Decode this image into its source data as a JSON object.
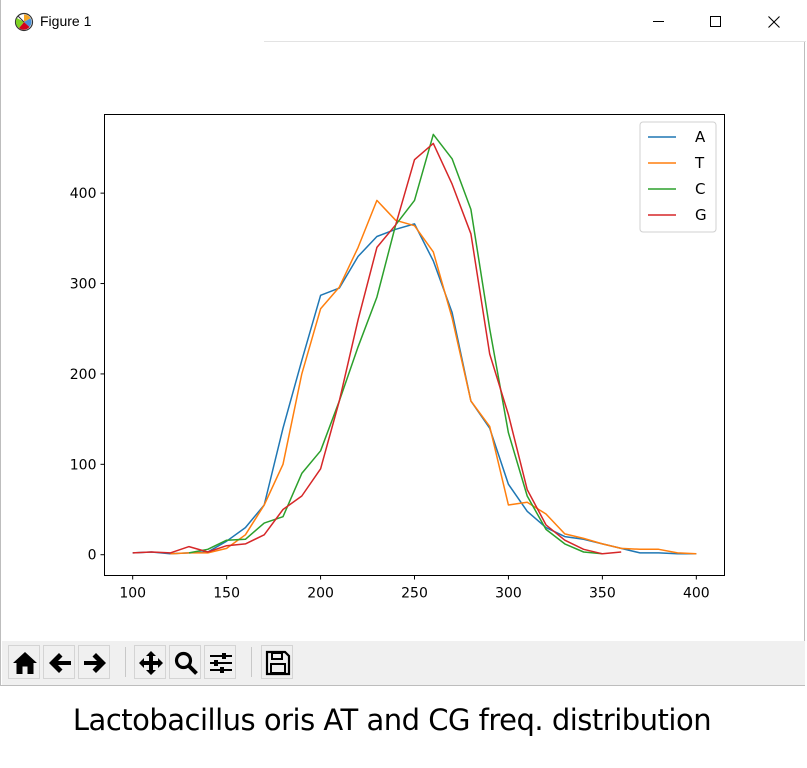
{
  "window": {
    "title": "Figure 1",
    "icons": [
      "matplotlib-icon",
      "minimize-icon",
      "maximize-icon",
      "close-icon"
    ]
  },
  "toolbar": {
    "buttons": [
      "home-icon",
      "back-arrow-icon",
      "forward-arrow-icon",
      "pan-icon",
      "zoom-icon",
      "configure-subplots-icon",
      "save-icon"
    ]
  },
  "caption": "Lactobacillus oris AT and CG freq. distribution",
  "chart_data": {
    "type": "line",
    "title": "",
    "xlabel": "",
    "ylabel": "",
    "xlim": [
      85,
      415
    ],
    "ylim": [
      -23,
      487
    ],
    "xticks": [
      100,
      150,
      200,
      250,
      300,
      350,
      400
    ],
    "yticks": [
      0,
      100,
      200,
      300,
      400
    ],
    "grid": false,
    "legend_position": "top-right",
    "series": [
      {
        "name": "A",
        "color": "#1f77b4",
        "points": [
          [
            100,
            2
          ],
          [
            110,
            3
          ],
          [
            120,
            1
          ],
          [
            130,
            2
          ],
          [
            140,
            3
          ],
          [
            150,
            15
          ],
          [
            160,
            30
          ],
          [
            170,
            55
          ],
          [
            180,
            140
          ],
          [
            190,
            215
          ],
          [
            200,
            287
          ],
          [
            210,
            295
          ],
          [
            220,
            330
          ],
          [
            230,
            352
          ],
          [
            240,
            360
          ],
          [
            250,
            366
          ],
          [
            260,
            325
          ],
          [
            270,
            268
          ],
          [
            280,
            170
          ],
          [
            290,
            140
          ],
          [
            300,
            78
          ],
          [
            310,
            48
          ],
          [
            320,
            30
          ],
          [
            330,
            20
          ],
          [
            340,
            17
          ],
          [
            350,
            12
          ],
          [
            360,
            7
          ],
          [
            370,
            2
          ],
          [
            380,
            2
          ],
          [
            390,
            1
          ],
          [
            400,
            1
          ]
        ]
      },
      {
        "name": "T",
        "color": "#ff7f0e",
        "points": [
          [
            120,
            1
          ],
          [
            130,
            2
          ],
          [
            140,
            2
          ],
          [
            150,
            7
          ],
          [
            160,
            22
          ],
          [
            170,
            55
          ],
          [
            180,
            100
          ],
          [
            190,
            200
          ],
          [
            200,
            272
          ],
          [
            210,
            296
          ],
          [
            220,
            340
          ],
          [
            230,
            392
          ],
          [
            240,
            370
          ],
          [
            250,
            364
          ],
          [
            260,
            335
          ],
          [
            270,
            262
          ],
          [
            280,
            170
          ],
          [
            290,
            142
          ],
          [
            300,
            55
          ],
          [
            310,
            58
          ],
          [
            320,
            45
          ],
          [
            330,
            23
          ],
          [
            340,
            18
          ],
          [
            350,
            12
          ],
          [
            360,
            7
          ],
          [
            370,
            6
          ],
          [
            380,
            6
          ],
          [
            390,
            2
          ],
          [
            400,
            1
          ]
        ]
      },
      {
        "name": "C",
        "color": "#2ca02c",
        "points": [
          [
            130,
            2
          ],
          [
            140,
            6
          ],
          [
            150,
            16
          ],
          [
            160,
            17
          ],
          [
            170,
            35
          ],
          [
            180,
            42
          ],
          [
            190,
            90
          ],
          [
            200,
            115
          ],
          [
            210,
            170
          ],
          [
            220,
            230
          ],
          [
            230,
            285
          ],
          [
            240,
            365
          ],
          [
            250,
            392
          ],
          [
            260,
            465
          ],
          [
            270,
            438
          ],
          [
            280,
            382
          ],
          [
            290,
            250
          ],
          [
            300,
            135
          ],
          [
            310,
            65
          ],
          [
            320,
            28
          ],
          [
            330,
            12
          ],
          [
            340,
            3
          ],
          [
            350,
            1
          ]
        ]
      },
      {
        "name": "G",
        "color": "#d62728",
        "points": [
          [
            100,
            2
          ],
          [
            110,
            3
          ],
          [
            120,
            2
          ],
          [
            130,
            9
          ],
          [
            140,
            3
          ],
          [
            150,
            10
          ],
          [
            160,
            12
          ],
          [
            170,
            22
          ],
          [
            180,
            50
          ],
          [
            190,
            65
          ],
          [
            200,
            95
          ],
          [
            210,
            170
          ],
          [
            220,
            260
          ],
          [
            230,
            340
          ],
          [
            240,
            365
          ],
          [
            250,
            437
          ],
          [
            260,
            455
          ],
          [
            270,
            410
          ],
          [
            280,
            355
          ],
          [
            290,
            222
          ],
          [
            300,
            155
          ],
          [
            310,
            72
          ],
          [
            320,
            33
          ],
          [
            330,
            16
          ],
          [
            340,
            6
          ],
          [
            350,
            1
          ],
          [
            360,
            3
          ]
        ]
      }
    ]
  }
}
